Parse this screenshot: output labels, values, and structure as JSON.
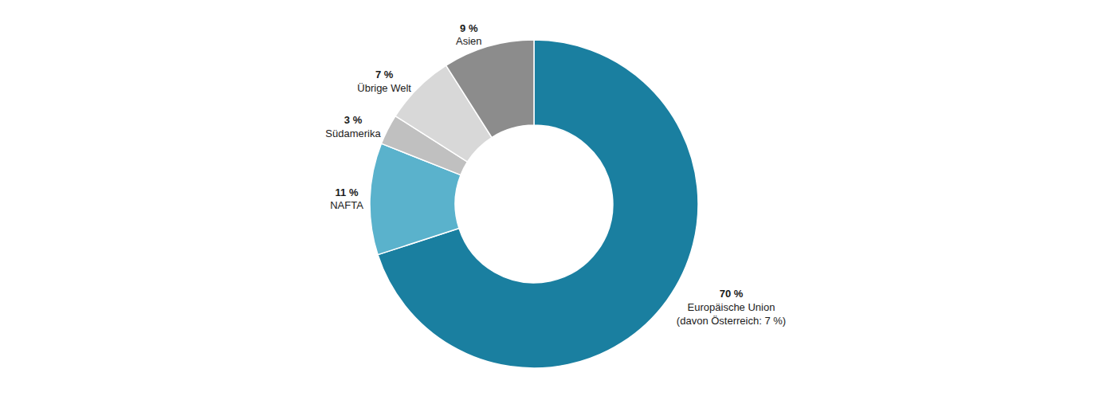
{
  "chart_data": {
    "type": "pie",
    "categories": [
      "Europäische Union\n(davon Österreich: 7 %)",
      "NAFTA",
      "Südamerika",
      "Übrige Welt",
      "Asien"
    ],
    "values": [
      70,
      11,
      3,
      7,
      9
    ],
    "value_labels": [
      "70 %",
      "11 %",
      "3 %",
      "7 %",
      "9 %"
    ],
    "colors": [
      "#1a7fa0",
      "#5ab2cc",
      "#c0c0c0",
      "#d8d8d8",
      "#8c8c8c"
    ],
    "data_labels": true
  }
}
